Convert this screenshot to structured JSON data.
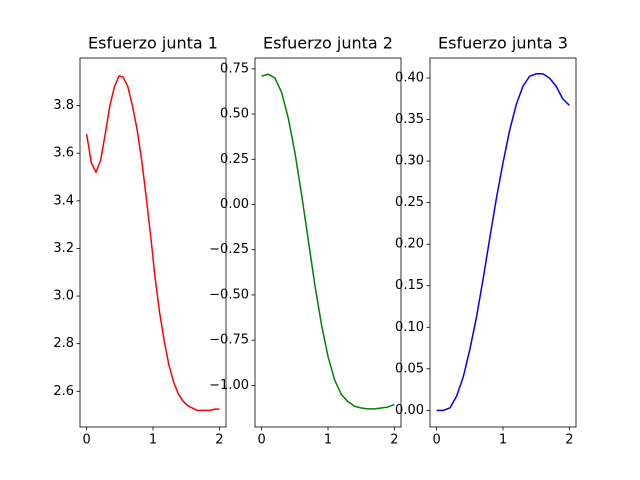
{
  "chart_data": [
    {
      "type": "line",
      "title": "Esfuerzo junta 1",
      "color": "#ff0000",
      "x": [
        0,
        0.07,
        0.14,
        0.21,
        0.28,
        0.35,
        0.42,
        0.49,
        0.55,
        0.62,
        0.69,
        0.76,
        0.83,
        0.9,
        0.97,
        1.03,
        1.1,
        1.17,
        1.24,
        1.31,
        1.38,
        1.45,
        1.52,
        1.59,
        1.66,
        1.72,
        1.79,
        1.86,
        1.93,
        2.0
      ],
      "values": [
        3.68,
        3.56,
        3.52,
        3.57,
        3.68,
        3.8,
        3.88,
        3.925,
        3.92,
        3.88,
        3.8,
        3.7,
        3.57,
        3.41,
        3.24,
        3.08,
        2.93,
        2.81,
        2.71,
        2.64,
        2.59,
        2.56,
        2.54,
        2.53,
        2.52,
        2.52,
        2.52,
        2.52,
        2.525,
        2.525
      ],
      "xlim": [
        -0.1,
        2.1
      ],
      "ylim": [
        2.45,
        4.0
      ],
      "xticks": [
        0,
        1,
        2
      ],
      "yticks": [
        2.6,
        2.8,
        {
          "value": 3,
          "label": "3.0"
        },
        3.2,
        3.4,
        3.6,
        3.8
      ]
    },
    {
      "type": "line",
      "title": "Esfuerzo junta 2",
      "color": "#008000",
      "x": [
        0,
        0.1,
        0.2,
        0.3,
        0.4,
        0.5,
        0.6,
        0.7,
        0.8,
        0.9,
        1.0,
        1.1,
        1.2,
        1.3,
        1.4,
        1.5,
        1.6,
        1.7,
        1.8,
        1.9,
        2.0
      ],
      "values": [
        0.71,
        0.72,
        0.7,
        0.62,
        0.48,
        0.29,
        0.06,
        -0.19,
        -0.44,
        -0.66,
        -0.84,
        -0.97,
        -1.05,
        -1.09,
        -1.115,
        -1.125,
        -1.13,
        -1.13,
        -1.125,
        -1.12,
        -1.105
      ],
      "xlim": [
        -0.1,
        2.1
      ],
      "ylim": [
        -1.23,
        0.81
      ],
      "xticks": [
        0,
        1,
        2
      ],
      "yticks": [
        {
          "value": -1,
          "label": "−1.00"
        },
        {
          "value": -0.75,
          "label": "−0.75"
        },
        {
          "value": -0.5,
          "label": "−0.50"
        },
        {
          "value": -0.25,
          "label": "−0.25"
        },
        {
          "value": 0,
          "label": "0.00"
        },
        0.25,
        {
          "value": 0.5,
          "label": "0.50"
        },
        0.75
      ]
    },
    {
      "type": "line",
      "title": "Esfuerzo junta 3",
      "color": "#0000ff",
      "x": [
        0,
        0.1,
        0.2,
        0.3,
        0.4,
        0.5,
        0.6,
        0.7,
        0.8,
        0.9,
        1.0,
        1.1,
        1.2,
        1.3,
        1.4,
        1.5,
        1.6,
        1.7,
        1.8,
        1.9,
        2.0
      ],
      "values": [
        0,
        0,
        0.003,
        0.017,
        0.04,
        0.073,
        0.112,
        0.158,
        0.207,
        0.255,
        0.298,
        0.337,
        0.368,
        0.39,
        0.402,
        0.405,
        0.405,
        0.4,
        0.39,
        0.375,
        0.367
      ],
      "xlim": [
        -0.1,
        2.1
      ],
      "ylim": [
        -0.02,
        0.424
      ],
      "xticks": [
        0,
        1,
        2
      ],
      "yticks": [
        {
          "value": 0,
          "label": "0.00"
        },
        0.05,
        {
          "value": 0.1,
          "label": "0.10"
        },
        0.15,
        {
          "value": 0.2,
          "label": "0.20"
        },
        0.25,
        {
          "value": 0.3,
          "label": "0.30"
        },
        0.35,
        {
          "value": 0.4,
          "label": "0.40"
        }
      ]
    }
  ]
}
